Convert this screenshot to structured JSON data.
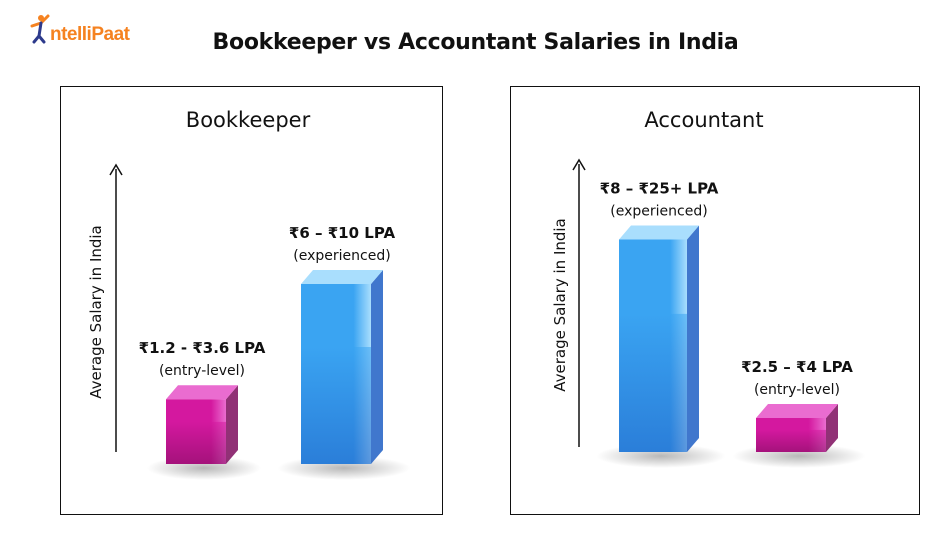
{
  "brand": {
    "name": "ntelliPaat",
    "accent": "#f58220",
    "primary": "#2d3a8c"
  },
  "title": "Bookkeeper vs Accountant Salaries in India",
  "chart_data": [
    {
      "type": "bar",
      "title": "Bookkeeper",
      "ylabel": "Average Salary in India",
      "unit": "LPA",
      "categories": [
        "entry-level",
        "experienced"
      ],
      "series": [
        {
          "values": [
            {
              "category": "entry-level",
              "min": 1.2,
              "max": 3.6,
              "label": "₹1.2 - ₹3.6 LPA",
              "sublabel": "(entry-level)",
              "color": "pink"
            },
            {
              "category": "experienced",
              "min": 6,
              "max": 10,
              "label": "₹6 – ₹10 LPA",
              "sublabel": "(experienced)",
              "color": "blue"
            }
          ]
        }
      ],
      "ylim": [
        0,
        14
      ]
    },
    {
      "type": "bar",
      "title": "Accountant",
      "ylabel": "Average Salary in India",
      "unit": "LPA",
      "categories": [
        "experienced",
        "entry-level"
      ],
      "series": [
        {
          "values": [
            {
              "category": "experienced",
              "min": 8,
              "max": 25,
              "label": "₹8 – ₹25+ LPA",
              "sublabel": "(experienced)",
              "color": "blue"
            },
            {
              "category": "entry-level",
              "min": 2.5,
              "max": 4,
              "label": "₹2.5 – ₹4 LPA",
              "sublabel": "(entry-level)",
              "color": "pink"
            }
          ]
        }
      ],
      "ylim": [
        0,
        30
      ]
    }
  ],
  "colors": {
    "pink_front": "#d4189f",
    "pink_dark": "#7e0d5e",
    "pink_top": "#ea6cd0",
    "blue_front": "#3aa4f2",
    "blue_dark": "#1e5fc4",
    "blue_top": "#a9defd"
  }
}
